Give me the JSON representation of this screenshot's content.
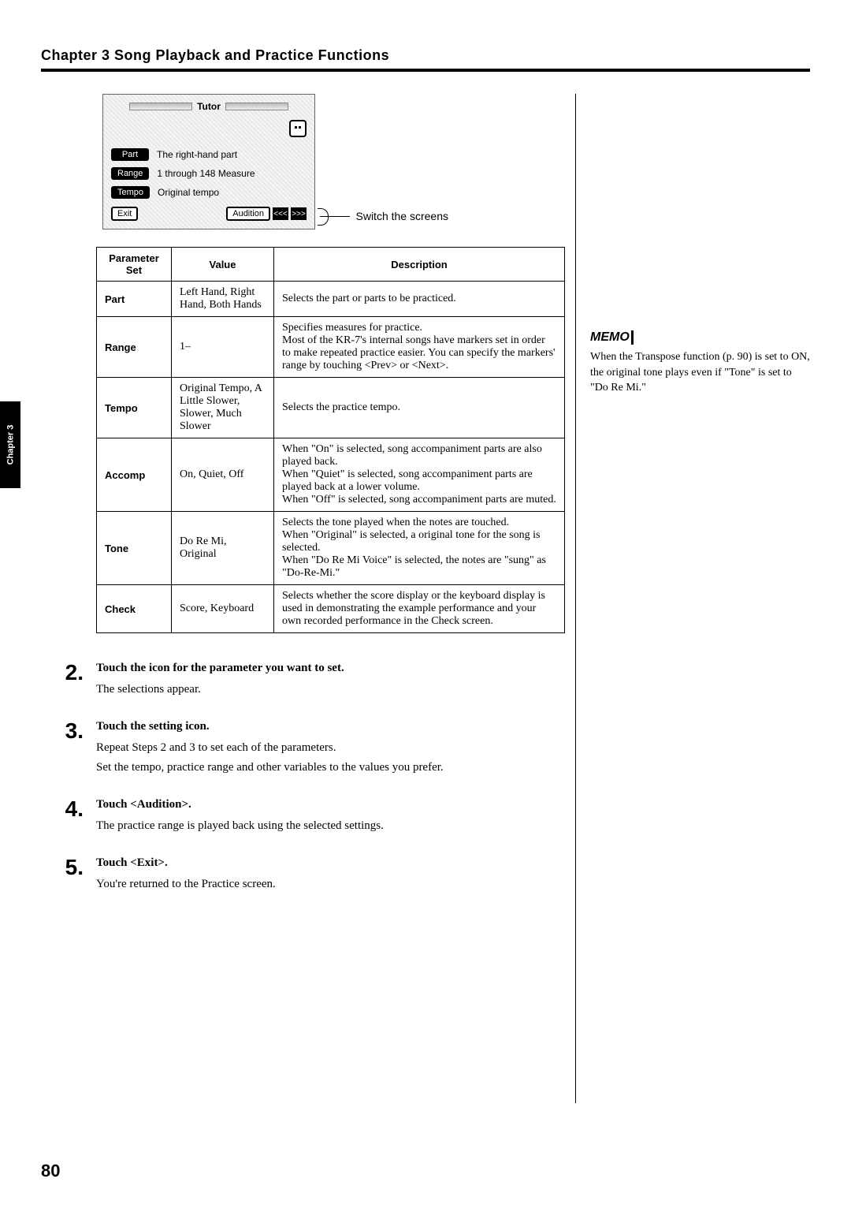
{
  "chapter_heading": "Chapter 3 Song Playback and Practice Functions",
  "chapter_tab": "Chapter 3",
  "page_number": "80",
  "tutor": {
    "title": "Tutor",
    "part_label": "Part",
    "part_value": "The right-hand part",
    "range_label": "Range",
    "range_value": "1 through 148 Measure",
    "tempo_label": "Tempo",
    "tempo_value": "Original tempo",
    "exit_label": "Exit",
    "audition_label": "Audition",
    "prev_glyph": "<<<",
    "next_glyph": ">>>",
    "switch_callout": "Switch the screens"
  },
  "table": {
    "headers": {
      "param": "Parameter Set",
      "value": "Value",
      "desc": "Description"
    },
    "rows": [
      {
        "param": "Part",
        "value": "Left Hand, Right Hand, Both Hands",
        "desc": "Selects the part or parts to be practiced."
      },
      {
        "param": "Range",
        "value": "1–",
        "desc": "Specifies measures for practice.\nMost of the KR-7's internal songs have markers set in order to make repeated practice easier. You can specify the markers' range by touching <Prev> or <Next>."
      },
      {
        "param": "Tempo",
        "value": "Original Tempo, A Little Slower, Slower, Much Slower",
        "desc": "Selects the practice tempo."
      },
      {
        "param": "Accomp",
        "value": "On, Quiet, Off",
        "desc": "When \"On\" is selected, song accompaniment parts are also played back.\nWhen \"Quiet\" is selected, song accompaniment parts are played back at a lower volume.\nWhen \"Off\" is selected, song accompaniment parts are muted."
      },
      {
        "param": "Tone",
        "value": "Do Re Mi, Original",
        "desc": "Selects the tone played when the notes are touched.\nWhen \"Original\" is selected, a original tone for the song is selected.\nWhen \"Do Re Mi Voice\" is selected, the notes are \"sung\" as \"Do-Re-Mi.\""
      },
      {
        "param": "Check",
        "value": "Score, Keyboard",
        "desc": "Selects whether the score display or the keyboard display is used in demonstrating the example performance and your own recorded performance in the Check screen."
      }
    ]
  },
  "steps": [
    {
      "num": "2.",
      "title": "Touch the icon for the parameter you want to set.",
      "body": [
        "The selections appear."
      ]
    },
    {
      "num": "3.",
      "title": "Touch the setting icon.",
      "body": [
        "Repeat Steps 2 and 3 to set each of the parameters.",
        "Set the tempo, practice range and other variables to the values you prefer."
      ]
    },
    {
      "num": "4.",
      "title": "Touch <Audition>.",
      "body": [
        "The practice range is played back using the selected settings."
      ]
    },
    {
      "num": "5.",
      "title": "Touch <Exit>.",
      "body": [
        "You're returned to the Practice screen."
      ]
    }
  ],
  "memo": {
    "label": "MEMO",
    "text": "When the Transpose function (p. 90) is set to ON, the original tone plays even if \"Tone\" is set to \"Do Re Mi.\""
  }
}
